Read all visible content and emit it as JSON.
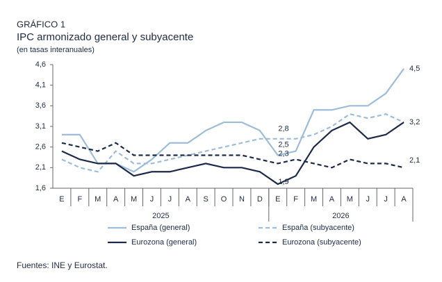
{
  "chart_data": {
    "type": "line",
    "title": "GRÁFICO 1",
    "subtitle": "IPC armonizado general y subyacente",
    "y_label": "(en tasas interanuales)",
    "source": "Fuentes: INE y Eurostat.",
    "categories": [
      "E",
      "F",
      "M",
      "A",
      "M",
      "J",
      "J",
      "A",
      "S",
      "O",
      "N",
      "D",
      "E",
      "F",
      "M",
      "A",
      "M",
      "J",
      "J",
      "A"
    ],
    "category_groups": [
      {
        "label": "2025",
        "span": 12
      },
      {
        "label": "2026",
        "span": 8
      }
    ],
    "ylim": [
      1.6,
      4.6
    ],
    "yticks": [
      {
        "value": 1.6,
        "label": "1,6"
      },
      {
        "value": 2.1,
        "label": "2,1"
      },
      {
        "value": 2.6,
        "label": "2,6"
      },
      {
        "value": 3.1,
        "label": "3,1"
      },
      {
        "value": 3.6,
        "label": "3,6"
      },
      {
        "value": 4.1,
        "label": "4,1"
      },
      {
        "value": 4.6,
        "label": "4,6"
      }
    ],
    "series": [
      {
        "name": "España (general)",
        "color": "#9dbcd8",
        "dash": false,
        "values": [
          2.9,
          2.9,
          2.2,
          2.2,
          2.0,
          2.3,
          2.7,
          2.7,
          3.0,
          3.2,
          3.2,
          3.0,
          2.4,
          2.5,
          3.5,
          3.5,
          3.6,
          3.6,
          3.9,
          4.5
        ],
        "value_labels": [
          null,
          null,
          null,
          null,
          null,
          null,
          null,
          null,
          null,
          null,
          null,
          null,
          null,
          "2,5",
          null,
          null,
          null,
          null,
          null,
          "4,5"
        ]
      },
      {
        "name": "España (subyacente)",
        "color": "#9dbcd8",
        "dash": true,
        "values": [
          2.3,
          2.1,
          2.0,
          2.5,
          2.2,
          2.2,
          2.3,
          2.4,
          2.5,
          2.6,
          2.7,
          2.8,
          2.8,
          2.8,
          2.9,
          3.1,
          3.4,
          3.3,
          3.4,
          3.2
        ],
        "value_labels": [
          null,
          null,
          null,
          null,
          null,
          null,
          null,
          null,
          null,
          null,
          null,
          null,
          null,
          "2,8",
          null,
          null,
          null,
          null,
          null,
          null
        ]
      },
      {
        "name": "Eurozona (general)",
        "color": "#1c2a4a",
        "dash": false,
        "values": [
          2.5,
          2.3,
          2.2,
          2.2,
          1.9,
          2.0,
          2.0,
          2.1,
          2.2,
          2.1,
          2.1,
          2.0,
          1.7,
          1.9,
          2.6,
          3.0,
          3.2,
          2.8,
          2.9,
          3.2
        ],
        "value_labels": [
          null,
          null,
          null,
          null,
          null,
          null,
          null,
          null,
          null,
          null,
          null,
          null,
          null,
          "1,9",
          null,
          null,
          null,
          null,
          null,
          "3,2"
        ]
      },
      {
        "name": "Eurozona (subyacente)",
        "color": "#1c2a4a",
        "dash": true,
        "values": [
          2.7,
          2.6,
          2.5,
          2.7,
          2.4,
          2.4,
          2.4,
          2.4,
          2.4,
          2.4,
          2.4,
          2.3,
          2.2,
          2.3,
          2.2,
          2.1,
          2.3,
          2.2,
          2.2,
          2.1
        ],
        "value_labels": [
          null,
          null,
          null,
          null,
          null,
          null,
          null,
          null,
          null,
          null,
          null,
          null,
          null,
          "2,3",
          null,
          null,
          null,
          null,
          null,
          "2,1"
        ]
      }
    ]
  }
}
